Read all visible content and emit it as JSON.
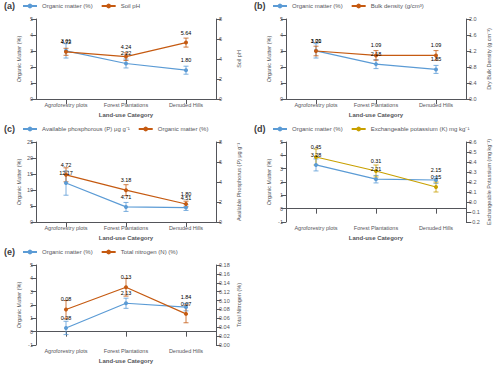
{
  "chart_data": [
    {
      "type": "line",
      "title": "(a)",
      "categories": [
        "Agroforestry plots",
        "Forest Plantations",
        "Denuded Hills"
      ],
      "xlabel": "Land-use Category",
      "ylabel": "Organic Matter (%)",
      "y2label": "Soil pH",
      "ylim": [
        0,
        5
      ],
      "yticks": [
        0,
        1,
        2,
        3,
        4,
        5
      ],
      "y2lim": [
        0,
        8
      ],
      "y2ticks": [
        0,
        2,
        4,
        6,
        8
      ],
      "grid": false,
      "legend": "top",
      "data_labels": true,
      "marker": "circle",
      "series": [
        {
          "name": "Organic matter (%)",
          "color": "#5b9bd5",
          "values": [
            3.01,
            2.22,
            1.8
          ],
          "value_labels": [
            "3.01",
            "2.22",
            "1.80"
          ],
          "errors": [
            0.45,
            0.28,
            0.25
          ]
        },
        {
          "name": "Soil pH",
          "color": "#c55a11",
          "axis": "y2",
          "values": [
            4.72,
            4.24,
            5.64
          ],
          "value_labels": [
            "4.72",
            "4.24",
            "5.64"
          ],
          "errors": [
            0.35,
            0.38,
            0.45
          ]
        }
      ]
    },
    {
      "type": "line",
      "title": "(b)",
      "categories": [
        "Agroforestry plots",
        "Forest Plantations",
        "Denuded Hills"
      ],
      "xlabel": "Land-use Category",
      "ylabel": "Organic Matter (%)",
      "y2label": "Dry Bulk Density (g cm⁻³)",
      "ylim": [
        0,
        5
      ],
      "yticks": [
        0,
        1,
        2,
        3,
        4,
        5
      ],
      "y2lim": [
        0,
        2.0
      ],
      "y2ticks": [
        {
          "value": 0,
          "label": "0.0"
        },
        0.4,
        0.8,
        1.2,
        1.6,
        {
          "value": 2.0,
          "label": "2.0"
        }
      ],
      "grid": false,
      "legend": "top",
      "data_labels": true,
      "marker": "circle",
      "series": [
        {
          "name": "Organic matter (%)",
          "color": "#5b9bd5",
          "values": [
            3.01,
            2.18,
            1.85
          ],
          "value_labels": [
            "3.01",
            "2.18",
            "1.85"
          ],
          "errors": [
            0.45,
            0.28,
            0.25
          ]
        },
        {
          "name": "Bulk density (g/cm³)",
          "color": "#c55a11",
          "axis": "y2",
          "values": [
            1.2,
            1.09,
            1.09
          ],
          "value_labels": [
            "1.20",
            "1.09",
            "1.09"
          ],
          "errors": [
            0.12,
            0.12,
            0.12
          ]
        }
      ]
    },
    {
      "type": "line",
      "title": "(c)",
      "categories": [
        "Agroforestry plots",
        "Forest Plantations",
        "Denuded Hills"
      ],
      "xlabel": "Land-use Category",
      "ylabel": "Organic Matter (%)",
      "y2label": "Available Phosphorus (P) μg g⁻¹",
      "ylim": [
        0,
        25
      ],
      "yticks": [
        0,
        5,
        10,
        15,
        20,
        25
      ],
      "y2lim": [
        0,
        8
      ],
      "y2ticks": [
        0,
        2,
        4,
        6,
        8
      ],
      "grid": false,
      "legend": "top",
      "data_labels": true,
      "marker": "circle",
      "series": [
        {
          "name": "Available phosphorous (P) μg g⁻¹",
          "color": "#5b9bd5",
          "values": [
            12.17,
            4.71,
            4.51
          ],
          "value_labels": [
            "12.17",
            "4.71",
            "4.51"
          ],
          "errors": [
            3.8,
            1.4,
            0.9
          ]
        },
        {
          "name": "Organic matter (%)",
          "color": "#c55a11",
          "axis": "y2",
          "values": [
            4.72,
            3.18,
            1.8
          ],
          "value_labels": [
            "4.72",
            "3.18",
            "1.80"
          ],
          "errors": [
            0.7,
            0.55,
            0.28
          ]
        }
      ]
    },
    {
      "type": "line",
      "title": "(d)",
      "categories": [
        "Agroforestry plots",
        "Forest Plantations",
        "Denuded Hills"
      ],
      "xlabel": "Land-use Category",
      "ylabel": "Organic Matter (%)",
      "y2label": "Exchangeable Potassium (mg kg⁻¹)",
      "ylim": [
        -1,
        5
      ],
      "yticks": [
        -1,
        0,
        1,
        2,
        3,
        4,
        5
      ],
      "y2lim": [
        -0.2,
        0.6
      ],
      "y2ticks": [
        {
          "value": -0.2,
          "label": "−0.2"
        },
        {
          "value": -0.1,
          "label": "−0.1"
        },
        {
          "value": 0,
          "label": "0.0"
        },
        0.1,
        0.2,
        0.3,
        0.4,
        0.5,
        0.6
      ],
      "grid": false,
      "legend": "top",
      "data_labels": true,
      "marker": "circle",
      "series": [
        {
          "name": "Organic matter (%)",
          "color": "#5b9bd5",
          "values": [
            3.28,
            2.21,
            2.15
          ],
          "value_labels": [
            "3.28",
            "2.21",
            "2.15"
          ],
          "errors": [
            0.45,
            0.28,
            0.25
          ]
        },
        {
          "name": "Exchangeable potassium (K) mg kg⁻¹",
          "color": "#c8a000",
          "axis": "y2",
          "values": [
            0.45,
            0.31,
            0.15
          ],
          "value_labels": [
            "0.45",
            "0.31",
            "0.15"
          ],
          "errors": [
            0.08,
            0.06,
            0.05
          ]
        }
      ]
    },
    {
      "type": "line",
      "title": "(e)",
      "categories": [
        "Agroforestry plots",
        "Forest Plantations",
        "Denuded Hills"
      ],
      "xlabel": "Land-use Category",
      "ylabel": "Organic Matter (%)",
      "y2label": "Total Nitrogen (%)",
      "ylim": [
        -1,
        5
      ],
      "yticks": [
        -1,
        0,
        1,
        2,
        3,
        4,
        5
      ],
      "y2lim": [
        0,
        0.18
      ],
      "y2ticks": [
        {
          "value": 0,
          "label": "0.00"
        },
        0.02,
        0.04,
        0.06,
        0.08,
        {
          "value": 0.1,
          "label": "0.10"
        },
        0.12,
        0.14,
        0.16,
        0.18
      ],
      "grid": false,
      "legend": "top",
      "data_labels": true,
      "marker": "circle",
      "series": [
        {
          "name": "Organic matter (%)",
          "color": "#5b9bd5",
          "values": [
            0.28,
            2.13,
            1.84
          ],
          "value_labels": [
            "0.28",
            "2.13",
            "1.84"
          ],
          "errors": [
            0.5,
            0.38,
            0.28
          ]
        },
        {
          "name": "Total nitrogen (N) (%)",
          "color": "#c55a11",
          "axis": "y2",
          "values": [
            0.08,
            0.13,
            0.07
          ],
          "value_labels": [
            "0.08",
            "0.13",
            "0.07"
          ],
          "errors": [
            0.02,
            0.02,
            0.02
          ]
        }
      ]
    }
  ]
}
